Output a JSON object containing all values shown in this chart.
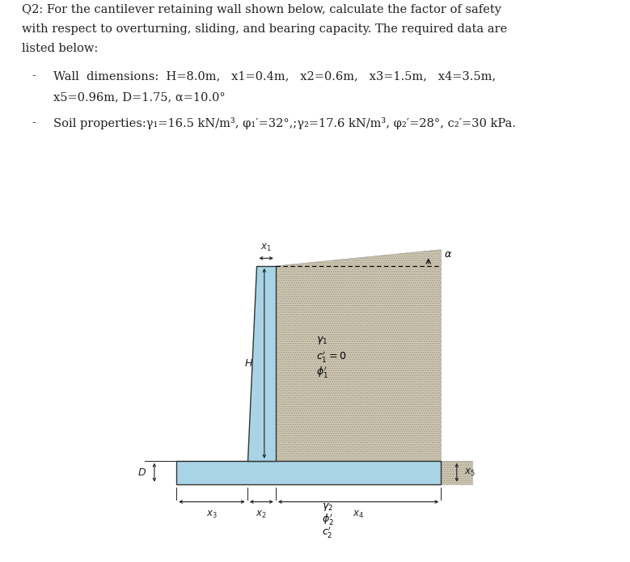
{
  "title_line1": "Q2: For the cantilever retaining wall shown below, calculate the factor of safety",
  "title_line2": "with respect to overturning, sliding, and bearing capacity. The required data are",
  "title_line3": "listed below:",
  "bullet1_dash": "-",
  "bullet1_line1": "Wall  dimensions:  H=8.0m,   x1=0.4m,   x2=0.6m,   x3=1.5m,   x4=3.5m,",
  "bullet1_line2": "x5=0.96m, D=1.75, α=10.0°",
  "bullet2_dash": "-",
  "bullet2_text": "Soil properties:γ₁=16.5 kN/m³, φ₁′=32°,;γ₂=17.6 kN/m³, φ₂′=28°, c₂′=30 kPa.",
  "wall_color": "#a8d4e6",
  "soil_color": "#d9cfb0",
  "background_color": "#ffffff",
  "wall_outline": "#333333",
  "dim_color": "#222222",
  "text_color": "#222222",
  "fig_width": 7.79,
  "fig_height": 6.95,
  "font_size_text": 10.5,
  "font_size_label": 9,
  "font_size_dim": 8.5
}
